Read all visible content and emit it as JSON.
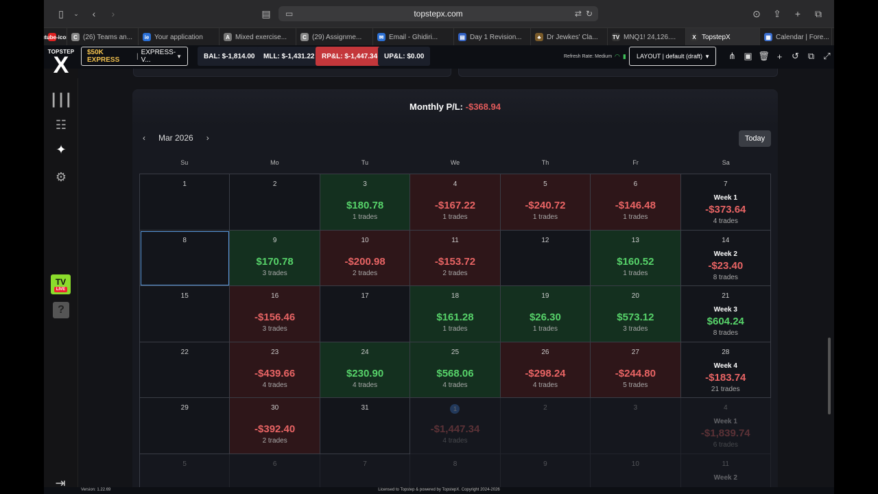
{
  "browser": {
    "url": "topstepx.com",
    "tabs": [
      {
        "label": "",
        "icon": "youtube-icon",
        "color": "#e02020"
      },
      {
        "label": "(26) Teams an...",
        "icon": "C",
        "color": "#888888"
      },
      {
        "label": "Your application",
        "icon": "ie",
        "color": "#2a6fd6"
      },
      {
        "label": "Mixed exercise...",
        "icon": "A",
        "color": "#777777"
      },
      {
        "label": "(29) Assignme...",
        "icon": "C",
        "color": "#888888"
      },
      {
        "label": "Email - Ghidiri...",
        "icon": "✉",
        "color": "#2b6fd3"
      },
      {
        "label": "Day 1 Revision...",
        "icon": "▤",
        "color": "#2f5fc2"
      },
      {
        "label": "Dr Jewkes' Cla...",
        "icon": "♣",
        "color": "#7a5b2a"
      },
      {
        "label": "MNQ1! 24,126....",
        "icon": "TV",
        "color": "#333333"
      },
      {
        "label": "TopstepX",
        "icon": "X",
        "color": "#333333"
      },
      {
        "label": "Calendar | Fore...",
        "icon": "▦",
        "color": "#3a6ecf"
      }
    ]
  },
  "app": {
    "logo_top": "TOPSTEP",
    "logo_x": "X",
    "account_name": "$50K EXPRESS",
    "account_id": "EXPRESS-V...",
    "bal": "BAL: $-1,814.00",
    "mll": "MLL: $-1,431.22",
    "rpl": "RP&L: $-1,447.34",
    "upl": "UP&L: $0.00",
    "refresh": "Refresh Rate: Medium",
    "layout": "LAYOUT | default (draft)",
    "version": "Version: 1.22.69",
    "license": "Licensed to Topstep & powered by TopstepX. Copyright 2024-2026"
  },
  "calendar": {
    "monthly_label": "Monthly P/L:",
    "monthly_value": "-$368.94",
    "month": "Mar 2026",
    "today_label": "Today",
    "weekdays": [
      "Su",
      "Mo",
      "Tu",
      "We",
      "Th",
      "Fr",
      "Sa"
    ],
    "weeks": [
      [
        {
          "day": "1"
        },
        {
          "day": "2"
        },
        {
          "day": "3",
          "amount": "$180.78",
          "trades": "1 trades",
          "tone": "pos"
        },
        {
          "day": "4",
          "amount": "-$167.22",
          "trades": "1 trades",
          "tone": "neg"
        },
        {
          "day": "5",
          "amount": "-$240.72",
          "trades": "1 trades",
          "tone": "neg"
        },
        {
          "day": "6",
          "amount": "-$146.48",
          "trades": "1 trades",
          "tone": "neg"
        },
        {
          "day": "7",
          "week": "Week 1",
          "amount": "-$373.64",
          "trades": "4 trades",
          "tone": "neg",
          "summary": true
        }
      ],
      [
        {
          "day": "8",
          "selected": true
        },
        {
          "day": "9",
          "amount": "$170.78",
          "trades": "3 trades",
          "tone": "pos"
        },
        {
          "day": "10",
          "amount": "-$200.98",
          "trades": "2 trades",
          "tone": "neg"
        },
        {
          "day": "11",
          "amount": "-$153.72",
          "trades": "2 trades",
          "tone": "neg"
        },
        {
          "day": "12"
        },
        {
          "day": "13",
          "amount": "$160.52",
          "trades": "1 trades",
          "tone": "pos"
        },
        {
          "day": "14",
          "week": "Week 2",
          "amount": "-$23.40",
          "trades": "8 trades",
          "tone": "neg",
          "summary": true
        }
      ],
      [
        {
          "day": "15"
        },
        {
          "day": "16",
          "amount": "-$156.46",
          "trades": "3 trades",
          "tone": "neg"
        },
        {
          "day": "17"
        },
        {
          "day": "18",
          "amount": "$161.28",
          "trades": "1 trades",
          "tone": "pos"
        },
        {
          "day": "19",
          "amount": "$26.30",
          "trades": "1 trades",
          "tone": "pos"
        },
        {
          "day": "20",
          "amount": "$573.12",
          "trades": "3 trades",
          "tone": "pos"
        },
        {
          "day": "21",
          "week": "Week 3",
          "amount": "$604.24",
          "trades": "8 trades",
          "tone": "pos",
          "summary": true
        }
      ],
      [
        {
          "day": "22"
        },
        {
          "day": "23",
          "amount": "-$439.66",
          "trades": "4 trades",
          "tone": "neg"
        },
        {
          "day": "24",
          "amount": "$230.90",
          "trades": "4 trades",
          "tone": "pos"
        },
        {
          "day": "25",
          "amount": "$568.06",
          "trades": "4 trades",
          "tone": "pos"
        },
        {
          "day": "26",
          "amount": "-$298.24",
          "trades": "4 trades",
          "tone": "neg"
        },
        {
          "day": "27",
          "amount": "-$244.80",
          "trades": "5 trades",
          "tone": "neg"
        },
        {
          "day": "28",
          "week": "Week 4",
          "amount": "-$183.74",
          "trades": "21 trades",
          "tone": "neg",
          "summary": true
        }
      ],
      [
        {
          "day": "29"
        },
        {
          "day": "30",
          "amount": "-$392.40",
          "trades": "2 trades",
          "tone": "neg"
        },
        {
          "day": "31"
        },
        {
          "day": "1",
          "amount": "-$1,447.34",
          "trades": "4 trades",
          "tone": "neg",
          "next": true,
          "circle": true,
          "plain": true
        },
        {
          "day": "2",
          "next": true
        },
        {
          "day": "3",
          "next": true
        },
        {
          "day": "4",
          "week": "Week 1",
          "amount": "-$1,839.74",
          "trades": "6 trades",
          "tone": "neg",
          "summary": true,
          "next": true
        }
      ],
      [
        {
          "day": "5",
          "next": true
        },
        {
          "day": "6",
          "next": true
        },
        {
          "day": "7",
          "next": true
        },
        {
          "day": "8",
          "next": true
        },
        {
          "day": "9",
          "next": true
        },
        {
          "day": "10",
          "next": true
        },
        {
          "day": "11",
          "week": "Week 2",
          "summary": true,
          "next": true
        }
      ]
    ]
  }
}
